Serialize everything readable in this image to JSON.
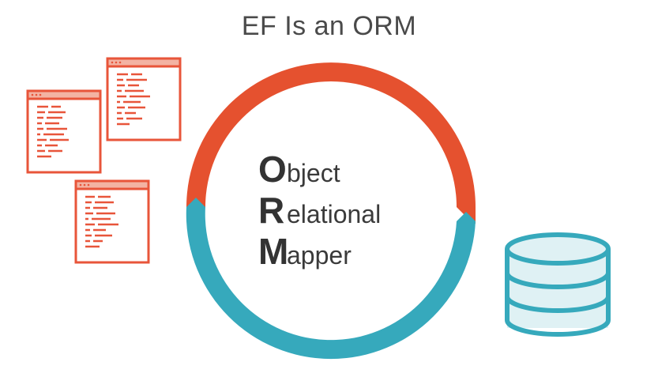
{
  "title": "EF Is an ORM",
  "acronym": [
    {
      "initial": "O",
      "rest": "bject"
    },
    {
      "initial": "R",
      "rest": "elational"
    },
    {
      "initial": "M",
      "rest": "apper"
    }
  ],
  "colors": {
    "code_windows": "#e8553a",
    "top_arc": "#e5512f",
    "bottom_arc": "#36a9bc",
    "database": "#36a9bc",
    "database_fill": "#dff1f4",
    "text": "#333333"
  },
  "icons": [
    "code-window-icon",
    "code-window-icon",
    "code-window-icon",
    "database-icon"
  ]
}
